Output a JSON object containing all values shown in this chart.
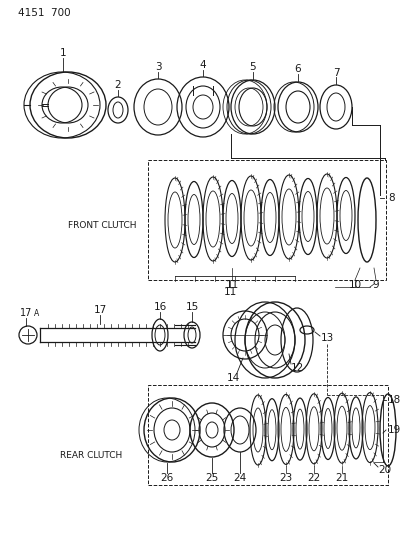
{
  "title": "4151  700",
  "bg_color": "#ffffff",
  "line_color": "#1a1a1a",
  "front_clutch_label": "FRONT CLUTCH",
  "rear_clutch_label": "REAR CLUTCH",
  "fig_w": 4.08,
  "fig_h": 5.33,
  "dpi": 100
}
